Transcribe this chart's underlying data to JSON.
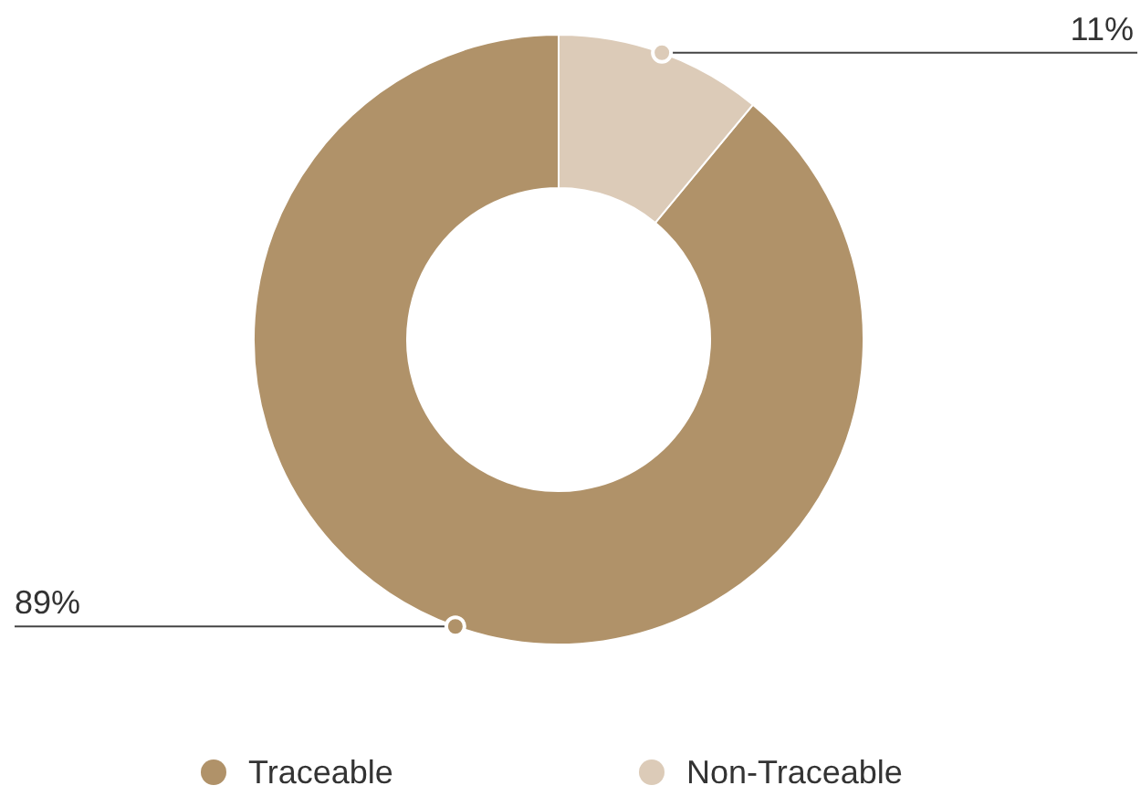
{
  "chart_data": {
    "type": "donut",
    "categories": [
      "Traceable",
      "Non-Traceable"
    ],
    "values": [
      89,
      11
    ],
    "colors": [
      "#b09269",
      "#dccbb8"
    ],
    "value_labels": [
      "89%",
      "11%"
    ],
    "legend": "bottom"
  }
}
